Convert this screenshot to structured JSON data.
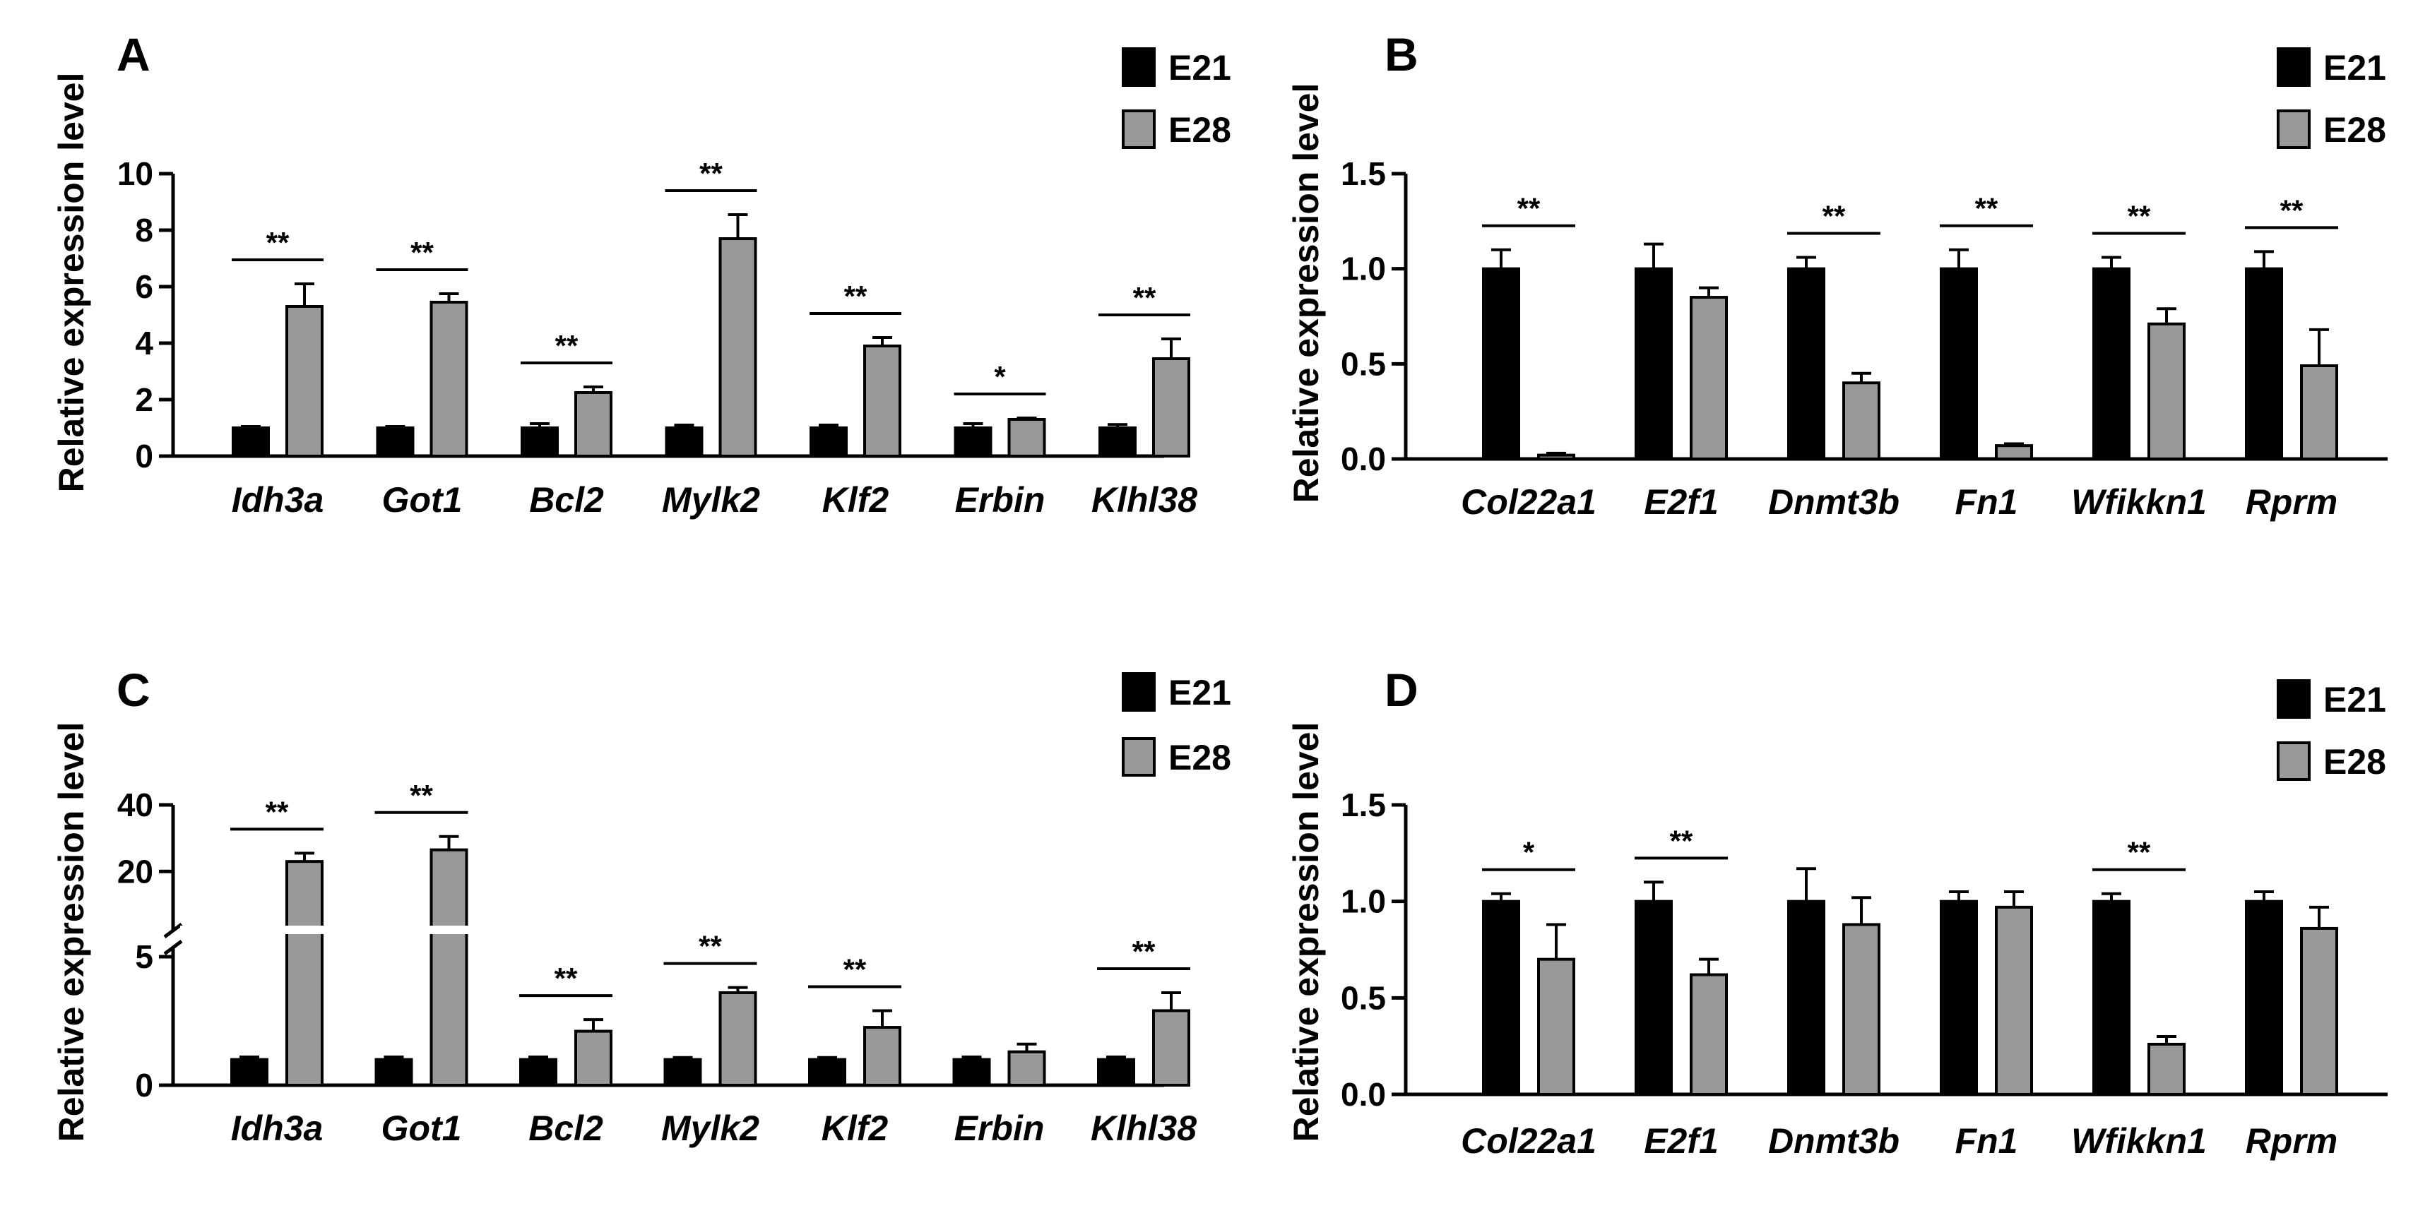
{
  "chart_data": [
    {
      "type": "bar",
      "panel": "A",
      "ylabel": "Relative expression level",
      "ylim": [
        0,
        10
      ],
      "yticks": [
        0,
        2,
        4,
        6,
        8,
        10
      ],
      "categories": [
        "Idh3a",
        "Got1",
        "Bcl2",
        "Mylk2",
        "Klf2",
        "Erbin",
        "Klhl38"
      ],
      "series": [
        {
          "name": "E21",
          "color": "#000000",
          "values": [
            1.0,
            1.0,
            1.0,
            1.0,
            1.0,
            1.0,
            1.0
          ],
          "errors": [
            0.05,
            0.05,
            0.15,
            0.1,
            0.1,
            0.15,
            0.12
          ]
        },
        {
          "name": "E28",
          "color": "#999999",
          "values": [
            5.3,
            5.45,
            2.25,
            7.7,
            3.9,
            1.3,
            3.45
          ],
          "errors": [
            0.8,
            0.3,
            0.2,
            0.85,
            0.3,
            0.05,
            0.7
          ]
        }
      ],
      "significance": [
        "**",
        "**",
        "**",
        "**",
        "**",
        "*",
        "**"
      ],
      "legend": [
        "E21",
        "E28"
      ]
    },
    {
      "type": "bar",
      "panel": "B",
      "ylabel": "Relative expression level",
      "ylim": [
        0,
        1.5
      ],
      "yticks": [
        "0.0",
        "0.5",
        "1.0",
        "1.5"
      ],
      "categories": [
        "Col22a1",
        "E2f1",
        "Dnmt3b",
        "Fn1",
        "Wfikkn1",
        "Rprm"
      ],
      "series": [
        {
          "name": "E21",
          "color": "#000000",
          "values": [
            1.0,
            1.0,
            1.0,
            1.0,
            1.0,
            1.0
          ],
          "errors": [
            0.1,
            0.13,
            0.06,
            0.1,
            0.06,
            0.09
          ]
        },
        {
          "name": "E28",
          "color": "#999999",
          "values": [
            0.02,
            0.85,
            0.4,
            0.07,
            0.71,
            0.49
          ],
          "errors": [
            0.01,
            0.05,
            0.05,
            0.01,
            0.08,
            0.19
          ]
        }
      ],
      "significance": [
        "**",
        "",
        "**",
        "**",
        "**",
        "**"
      ],
      "legend": [
        "E21",
        "E28"
      ]
    },
    {
      "type": "bar",
      "panel": "C",
      "ylabel": "Relative expression level",
      "axis_break": true,
      "ylim_lower": [
        0,
        5
      ],
      "ylim_upper": [
        5,
        40
      ],
      "yticks": [
        0,
        5,
        20,
        40
      ],
      "categories": [
        "Idh3a",
        "Got1",
        "Bcl2",
        "Mylk2",
        "Klf2",
        "Erbin",
        "Klhl38"
      ],
      "series": [
        {
          "name": "E21",
          "color": "#000000",
          "values": [
            1.0,
            1.0,
            1.0,
            1.0,
            1.0,
            1.0,
            1.0
          ],
          "errors": [
            0.1,
            0.1,
            0.1,
            0.08,
            0.08,
            0.1,
            0.1
          ]
        },
        {
          "name": "E28",
          "color": "#999999",
          "values": [
            23,
            26.5,
            2.1,
            3.6,
            2.25,
            1.3,
            2.9
          ],
          "errors": [
            2.5,
            4,
            0.45,
            0.2,
            0.65,
            0.3,
            0.7
          ]
        }
      ],
      "significance": [
        "**",
        "**",
        "**",
        "**",
        "**",
        "",
        "**"
      ],
      "legend": [
        "E21",
        "E28"
      ]
    },
    {
      "type": "bar",
      "panel": "D",
      "ylabel": "Relative expression level",
      "ylim": [
        0,
        1.5
      ],
      "yticks": [
        "0.0",
        "0.5",
        "1.0",
        "1.5"
      ],
      "categories": [
        "Col22a1",
        "E2f1",
        "Dnmt3b",
        "Fn1",
        "Wfikkn1",
        "Rprm"
      ],
      "series": [
        {
          "name": "E21",
          "color": "#000000",
          "values": [
            1.0,
            1.0,
            1.0,
            1.0,
            1.0,
            1.0
          ],
          "errors": [
            0.04,
            0.1,
            0.17,
            0.05,
            0.04,
            0.05
          ]
        },
        {
          "name": "E28",
          "color": "#999999",
          "values": [
            0.7,
            0.62,
            0.88,
            0.97,
            0.26,
            0.86
          ],
          "errors": [
            0.18,
            0.08,
            0.14,
            0.08,
            0.04,
            0.11
          ]
        }
      ],
      "significance": [
        "*",
        "**",
        "",
        "",
        "**",
        ""
      ],
      "legend": [
        "E21",
        "E28"
      ]
    }
  ]
}
